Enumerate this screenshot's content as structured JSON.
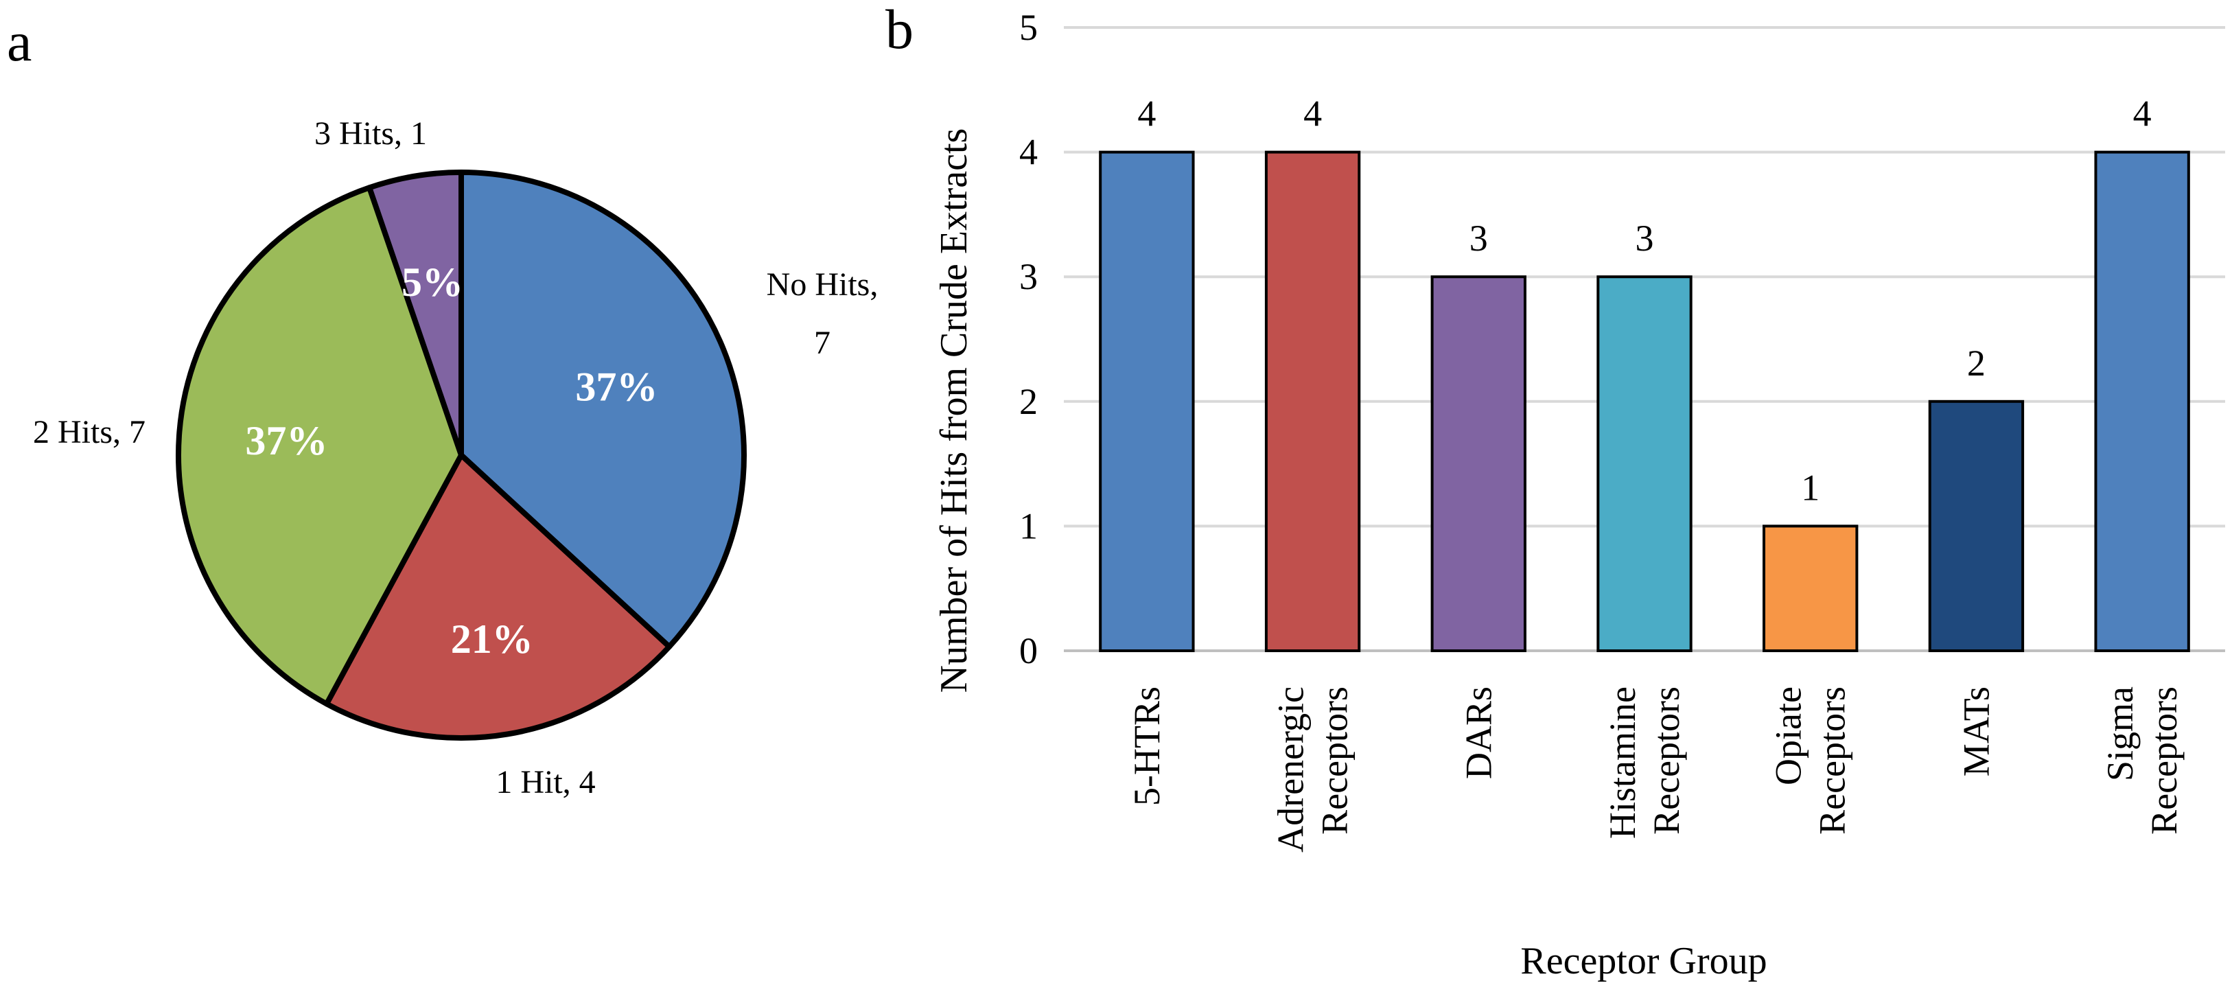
{
  "panels": {
    "a_label": "a",
    "b_label": "b"
  },
  "chart_data": [
    {
      "type": "pie",
      "panel": "a",
      "slices": [
        {
          "label": "No Hits, 7",
          "value": 7,
          "percent_label": "37%",
          "color": "#4F81BD",
          "percent_color": "#ffffff"
        },
        {
          "label": "1 Hit, 4",
          "value": 4,
          "percent_label": "21%",
          "color": "#C0504D",
          "percent_color": "#ffffff"
        },
        {
          "label": "2 Hits, 7",
          "value": 7,
          "percent_label": "37%",
          "color": "#9BBB59",
          "percent_color": "#ffffff"
        },
        {
          "label": "3 Hits, 1",
          "value": 1,
          "percent_label": "5%",
          "color": "#8064A2",
          "percent_color": "#ffffff"
        }
      ],
      "start_angle_deg": 0,
      "direction": "clockwise",
      "outline_color": "#000000"
    },
    {
      "type": "bar",
      "panel": "b",
      "categories": [
        [
          "5-HTRs"
        ],
        [
          "Adrenergic",
          "Receptors"
        ],
        [
          "DARs"
        ],
        [
          "Histamine",
          "Receptors"
        ],
        [
          "Opiate",
          "Receptors"
        ],
        [
          "MATs"
        ],
        [
          "Sigma",
          "Receptors"
        ]
      ],
      "values": [
        4,
        4,
        3,
        3,
        1,
        2,
        4
      ],
      "data_labels": [
        "4",
        "4",
        "3",
        "3",
        "1",
        "2",
        "4"
      ],
      "colors": [
        "#4F81BD",
        "#C0504D",
        "#8064A2",
        "#4BACC6",
        "#F79646",
        "#1F497D",
        "#4F81BD"
      ],
      "xlabel": "Receptor Group",
      "ylabel": "Number of Hits from Crude Extracts",
      "ylim": [
        0,
        5
      ],
      "yticks": [
        "0",
        "1",
        "2",
        "3",
        "4",
        "5"
      ],
      "grid": true,
      "grid_color": "#D9D9D9",
      "bar_outline_color": "#000000"
    }
  ]
}
